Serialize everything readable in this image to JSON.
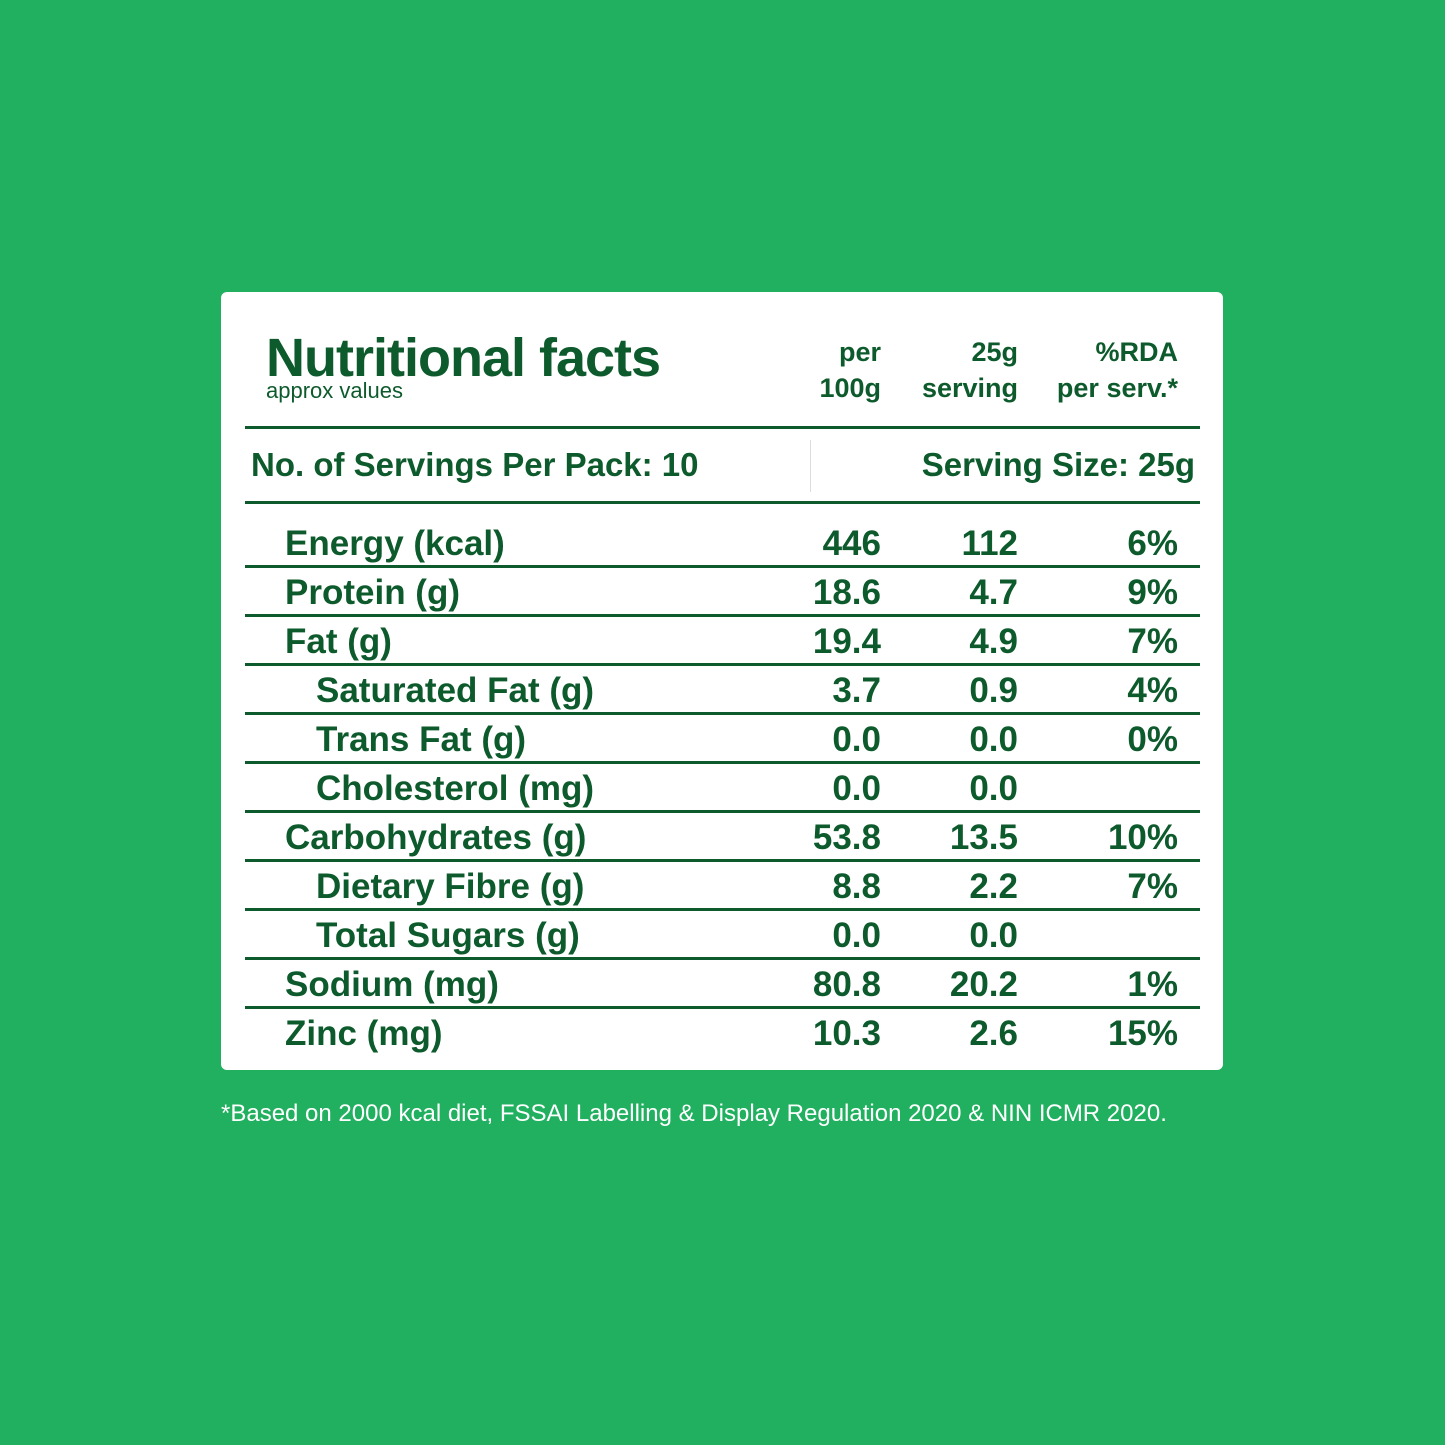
{
  "header": {
    "title": "Nutritional facts",
    "subtitle": "approx values",
    "columns": [
      [
        "per",
        "100g"
      ],
      [
        "25g",
        "serving"
      ],
      [
        "%RDA",
        "per serv.*"
      ]
    ]
  },
  "servings": {
    "per_pack": "No. of Servings Per Pack: 10",
    "size": "Serving Size: 25g"
  },
  "rows": [
    {
      "name": "Energy (kcal)",
      "per_100g": "446",
      "per_serving": "112",
      "rda": "6%",
      "indent": false
    },
    {
      "name": "Protein (g)",
      "per_100g": "18.6",
      "per_serving": "4.7",
      "rda": "9%",
      "indent": false
    },
    {
      "name": "Fat (g)",
      "per_100g": "19.4",
      "per_serving": "4.9",
      "rda": "7%",
      "indent": false
    },
    {
      "name": "Saturated Fat (g)",
      "per_100g": "3.7",
      "per_serving": "0.9",
      "rda": "4%",
      "indent": true
    },
    {
      "name": "Trans Fat (g)",
      "per_100g": "0.0",
      "per_serving": "0.0",
      "rda": "0%",
      "indent": true
    },
    {
      "name": "Cholesterol (mg)",
      "per_100g": "0.0",
      "per_serving": "0.0",
      "indent": true
    },
    {
      "name": "Carbohydrates (g)",
      "per_100g": "53.8",
      "per_serving": "13.5",
      "rda": "10%",
      "indent": false
    },
    {
      "name": "Dietary Fibre (g)",
      "per_100g": "8.8",
      "per_serving": "2.2",
      "rda": "7%",
      "indent": true
    },
    {
      "name": "Total Sugars (g)",
      "per_100g": "0.0",
      "per_serving": "0.0",
      "indent": true
    },
    {
      "name": "Sodium (mg)",
      "per_100g": "80.8",
      "per_serving": "20.2",
      "rda": "1%",
      "indent": false
    },
    {
      "name": "Zinc (mg)",
      "per_100g": "10.3",
      "per_serving": "2.6",
      "rda": "15%",
      "indent": false
    }
  ],
  "footnote": "*Based on 2000 kcal diet, FSSAI Labelling & Display Regulation 2020 & NIN ICMR 2020."
}
